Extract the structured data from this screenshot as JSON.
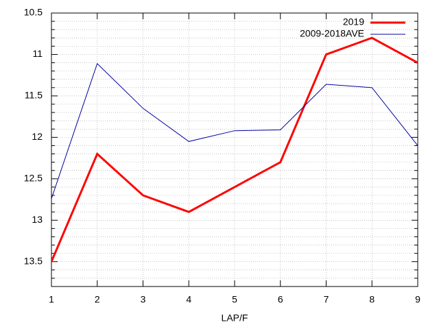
{
  "chart_data": {
    "type": "line",
    "xlabel": "LAP/F",
    "x": [
      1,
      2,
      3,
      4,
      5,
      6,
      7,
      8,
      9
    ],
    "series": [
      {
        "name": "2019",
        "color": "#ff0000",
        "values": [
          13.5,
          12.2,
          12.7,
          12.9,
          12.6,
          12.3,
          11.0,
          10.8,
          11.1
        ]
      },
      {
        "name": "2009-2018AVE",
        "color": "#0000a0",
        "values": [
          12.74,
          11.11,
          11.65,
          12.05,
          11.92,
          11.91,
          11.36,
          11.4,
          12.1
        ]
      }
    ],
    "xlim": [
      1,
      9
    ],
    "xticks": [
      1,
      2,
      3,
      4,
      5,
      6,
      7,
      8,
      9
    ],
    "ylim": [
      10.5,
      13.8
    ],
    "y_reversed": true,
    "yticks": [
      10.5,
      11,
      11.5,
      12,
      12.5,
      13,
      13.5
    ],
    "yminor": [
      10.6,
      10.7,
      10.8,
      10.9,
      11.1,
      11.2,
      11.3,
      11.4,
      11.6,
      11.7,
      11.8,
      11.9,
      12.1,
      12.2,
      12.3,
      12.4,
      12.6,
      12.7,
      12.8,
      12.9,
      13.1,
      13.2,
      13.3,
      13.4,
      13.6,
      13.7
    ],
    "grid": true,
    "legend": "top-right"
  }
}
